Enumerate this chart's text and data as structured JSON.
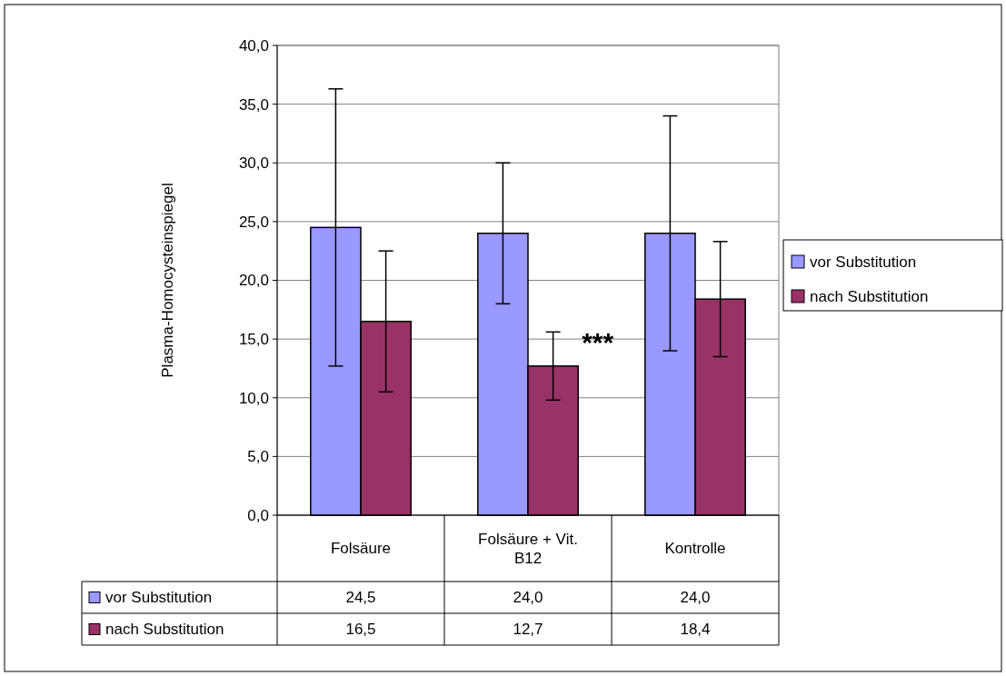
{
  "chart_data": {
    "type": "bar",
    "ylabel": "Plasma-Homocysteinspiegel",
    "categories": [
      "Folsäure",
      "Folsäure + Vit. B12",
      "Kontrolle"
    ],
    "series": [
      {
        "name": "vor Substitution",
        "color": "#9999ff",
        "values": [
          24.5,
          24.0,
          24.0
        ],
        "value_labels": [
          "24,5",
          "24,0",
          "24,0"
        ],
        "errors": [
          11.8,
          6.0,
          10.0
        ]
      },
      {
        "name": "nach Substitution",
        "color": "#993366",
        "values": [
          16.5,
          12.7,
          18.4
        ],
        "value_labels": [
          "16,5",
          "12,7",
          "18,4"
        ],
        "errors": [
          6.0,
          2.9,
          4.9
        ]
      }
    ],
    "ylim": [
      0,
      40
    ],
    "yticks": [
      {
        "value": 0,
        "label": "0,0"
      },
      {
        "value": 5,
        "label": "5,0"
      },
      {
        "value": 10,
        "label": "10,0"
      },
      {
        "value": 15,
        "label": "15,0"
      },
      {
        "value": 20,
        "label": "20,0"
      },
      {
        "value": 25,
        "label": "25,0"
      },
      {
        "value": 30,
        "label": "30,0"
      },
      {
        "value": 35,
        "label": "35,0"
      },
      {
        "value": 40,
        "label": "40,0"
      }
    ],
    "grid": "y",
    "legend": "right",
    "annotations": [
      {
        "text": "***",
        "x": "Folsäure + Vit. B12",
        "y": 15.6
      }
    ]
  }
}
